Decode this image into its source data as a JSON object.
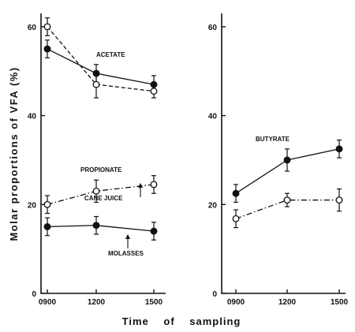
{
  "figure": {
    "ylabel": "Molar proportions of VFA (%)",
    "xlabel": "Time of sampling"
  },
  "chart_data": [
    {
      "type": "line",
      "panel": "left",
      "x": [
        "0900",
        "1200",
        "1500"
      ],
      "ylim": [
        0,
        63
      ],
      "yticks": [
        0,
        20,
        40,
        60
      ],
      "grid": false,
      "series": [
        {
          "group": "ACETATE",
          "name": "MOLASSES",
          "marker": "filled",
          "style": "solid",
          "values": [
            55,
            49.5,
            47
          ],
          "errors": [
            2,
            2,
            2
          ]
        },
        {
          "group": "ACETATE",
          "name": "CANE JUICE",
          "marker": "open",
          "style": "dashed",
          "values": [
            60,
            47,
            45.5
          ],
          "errors": [
            2,
            3,
            1.5
          ]
        },
        {
          "group": "PROPIONATE",
          "name": "CANE JUICE",
          "marker": "open",
          "style": "dashdot",
          "values": [
            20,
            23,
            24.5
          ],
          "errors": [
            2,
            2.5,
            2
          ]
        },
        {
          "group": "PROPIONATE",
          "name": "MOLASSES",
          "marker": "filled",
          "style": "solid",
          "values": [
            15,
            15.3,
            14
          ],
          "errors": [
            2,
            2,
            2
          ]
        }
      ],
      "annotations": [
        {
          "text": "ACETATE"
        },
        {
          "text": "PROPIONATE"
        },
        {
          "text": "CANE JUICE"
        },
        {
          "text": "MOLASSES"
        }
      ]
    },
    {
      "type": "line",
      "panel": "right",
      "x": [
        "0900",
        "1200",
        "1500"
      ],
      "ylim": [
        0,
        63
      ],
      "yticks": [
        0,
        20,
        40,
        60
      ],
      "grid": false,
      "series": [
        {
          "group": "BUTYRATE",
          "name": "MOLASSES",
          "marker": "filled",
          "style": "solid",
          "values": [
            22.5,
            30,
            32.5
          ],
          "errors": [
            2,
            2.5,
            2
          ]
        },
        {
          "group": "BUTYRATE",
          "name": "CANE JUICE",
          "marker": "open",
          "style": "dashdot",
          "values": [
            16.8,
            21,
            21
          ],
          "errors": [
            2,
            1.5,
            2.5
          ]
        }
      ],
      "annotations": [
        {
          "text": "BUTYRATE"
        }
      ]
    }
  ]
}
